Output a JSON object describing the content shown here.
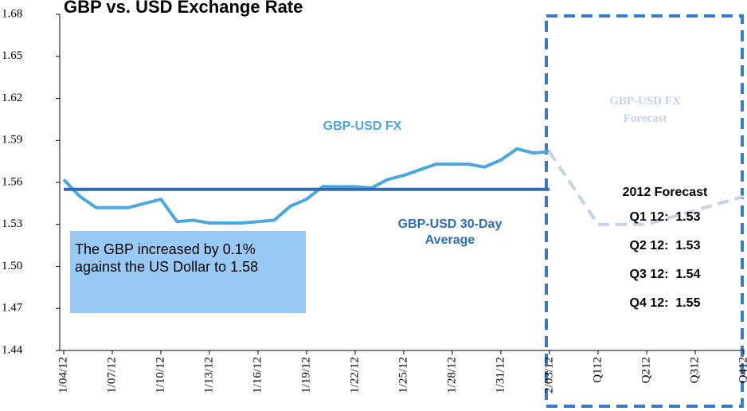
{
  "chart_data": {
    "type": "line",
    "title": "GBP vs. USD Exchange Rate",
    "categories": [
      "1/04/12",
      null,
      null,
      "1/07/12",
      null,
      null,
      "1/10/12",
      null,
      null,
      "1/13/12",
      null,
      null,
      "1/16/12",
      null,
      null,
      "1/19/12",
      null,
      null,
      "1/22/12",
      null,
      null,
      "1/25/12",
      null,
      null,
      "1/28/12",
      null,
      null,
      "1/31/12",
      null,
      null,
      "2/03/12",
      "Q112",
      "Q212",
      "Q312",
      "Q412"
    ],
    "series": [
      {
        "name": "GBP-USD FX",
        "color": "#4da6e0",
        "dashed": false,
        "values": [
          1.562,
          1.55,
          1.542,
          1.542,
          1.542,
          1.545,
          1.548,
          1.532,
          1.533,
          1.531,
          1.531,
          1.531,
          1.532,
          1.533,
          1.543,
          1.548,
          1.557,
          1.557,
          1.557,
          1.556,
          1.562,
          1.565,
          1.569,
          1.573,
          1.573,
          1.573,
          1.571,
          1.576,
          1.584,
          1.581,
          1.582,
          null,
          null,
          null,
          null
        ]
      },
      {
        "name": "GBP-USD 30-Day Average",
        "color": "#2e6db5",
        "dashed": false,
        "values": [
          1.555,
          1.555,
          1.555,
          1.555,
          1.555,
          1.555,
          1.555,
          1.555,
          1.555,
          1.555,
          1.555,
          1.555,
          1.555,
          1.555,
          1.555,
          1.555,
          1.555,
          1.555,
          1.555,
          1.555,
          1.555,
          1.555,
          1.555,
          1.555,
          1.555,
          1.555,
          1.555,
          1.555,
          1.555,
          1.555,
          1.555,
          null,
          null,
          null,
          null
        ]
      },
      {
        "name": "GBP-USD FX Forecast",
        "color": "#c5d3e6",
        "dashed": true,
        "values": [
          null,
          null,
          null,
          null,
          null,
          null,
          null,
          null,
          null,
          null,
          null,
          null,
          null,
          null,
          null,
          null,
          null,
          null,
          null,
          null,
          null,
          null,
          null,
          null,
          null,
          null,
          null,
          null,
          null,
          null,
          1.582,
          1.53,
          1.53,
          1.54,
          1.55
        ]
      }
    ],
    "ylim": [
      1.44,
      1.68
    ],
    "yticks": [
      1.44,
      1.47,
      {
        "value": 1.5,
        "label": "1.50"
      },
      1.53,
      1.56,
      1.59,
      1.62,
      1.65,
      1.68
    ],
    "annotation": "The GBP increased by 0.1% against the US Dollar to 1.58",
    "forecast_title": "2012 Forecast",
    "forecast_rows": [
      "Q1 12:  1.53",
      "Q2 12:  1.53",
      "Q3 12:  1.54",
      "Q4 12:  1.55"
    ]
  }
}
